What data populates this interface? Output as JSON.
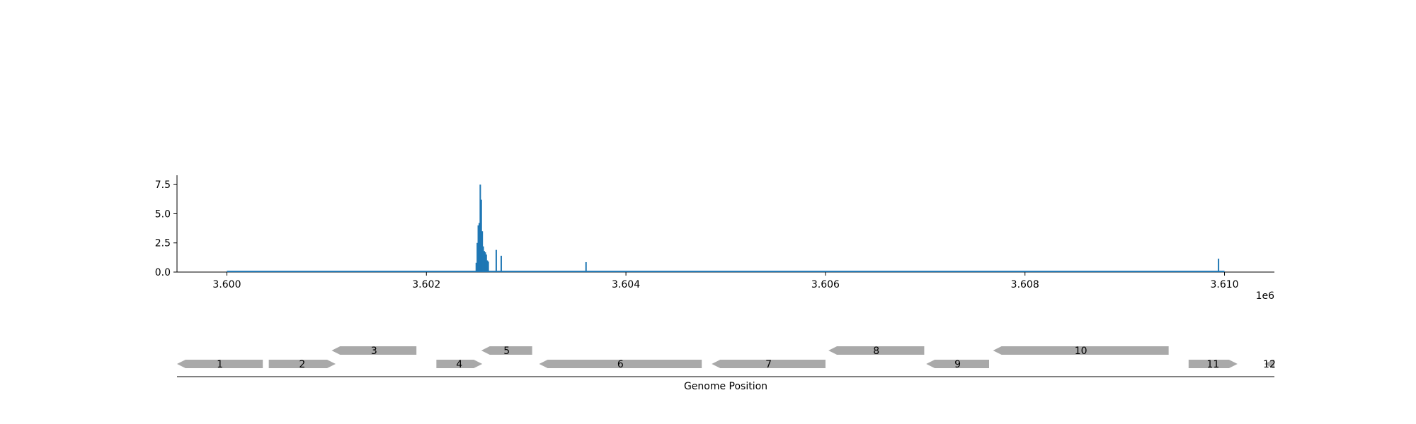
{
  "chart_data": [
    {
      "type": "bar",
      "title": "",
      "xlabel": "",
      "ylabel": "",
      "x_offset_label": "1e6",
      "xlim": [
        3599500,
        3610500
      ],
      "ylim": [
        0,
        8.3
      ],
      "xticks": [
        3600000,
        3602000,
        3604000,
        3606000,
        3608000,
        3610000
      ],
      "xtick_labels": [
        "3.600",
        "3.602",
        "3.604",
        "3.606",
        "3.608",
        "3.610"
      ],
      "yticks": [
        0,
        2.5,
        5,
        7.5
      ],
      "ytick_labels": [
        "0.0",
        "2.5",
        "5.0",
        "7.5"
      ],
      "color": "#1f77b4",
      "baseline": {
        "x_start": 3600000,
        "x_end": 3610000,
        "value": 0.05
      },
      "x": [
        3602500,
        3602510,
        3602520,
        3602530,
        3602540,
        3602550,
        3602560,
        3602570,
        3602580,
        3602590,
        3602600,
        3602610,
        3602620,
        3602700,
        3602750,
        3603600,
        3609940
      ],
      "values": [
        0.8,
        2.5,
        4.0,
        4.2,
        7.5,
        6.2,
        3.5,
        2.2,
        1.8,
        1.7,
        1.5,
        1.0,
        0.9,
        1.9,
        1.4,
        0.85,
        1.15
      ]
    },
    {
      "type": "gene-track",
      "xlabel": "Genome Position",
      "xlim": [
        3599500,
        3610500
      ],
      "color": "#a9a9a9",
      "genes": [
        {
          "label": "1",
          "start": 3599500,
          "end": 3600360,
          "strand": "-",
          "row": 0
        },
        {
          "label": "2",
          "start": 3600420,
          "end": 3601090,
          "strand": "+",
          "row": 0
        },
        {
          "label": "3",
          "start": 3601050,
          "end": 3601900,
          "strand": "-",
          "row": 1
        },
        {
          "label": "4",
          "start": 3602100,
          "end": 3602560,
          "strand": "+",
          "row": 0
        },
        {
          "label": "5",
          "start": 3602550,
          "end": 3603060,
          "strand": "-",
          "row": 1
        },
        {
          "label": "6",
          "start": 3603130,
          "end": 3604760,
          "strand": "-",
          "row": 0
        },
        {
          "label": "7",
          "start": 3604860,
          "end": 3606000,
          "strand": "-",
          "row": 0
        },
        {
          "label": "8",
          "start": 3606030,
          "end": 3606990,
          "strand": "-",
          "row": 1
        },
        {
          "label": "9",
          "start": 3607010,
          "end": 3607640,
          "strand": "-",
          "row": 0
        },
        {
          "label": "10",
          "start": 3607680,
          "end": 3609440,
          "strand": "-",
          "row": 1
        },
        {
          "label": "11",
          "start": 3609640,
          "end": 3610130,
          "strand": "+",
          "row": 0
        },
        {
          "label": "12",
          "start": 3610400,
          "end": 3610500,
          "strand": "-",
          "row": 0
        }
      ]
    }
  ]
}
